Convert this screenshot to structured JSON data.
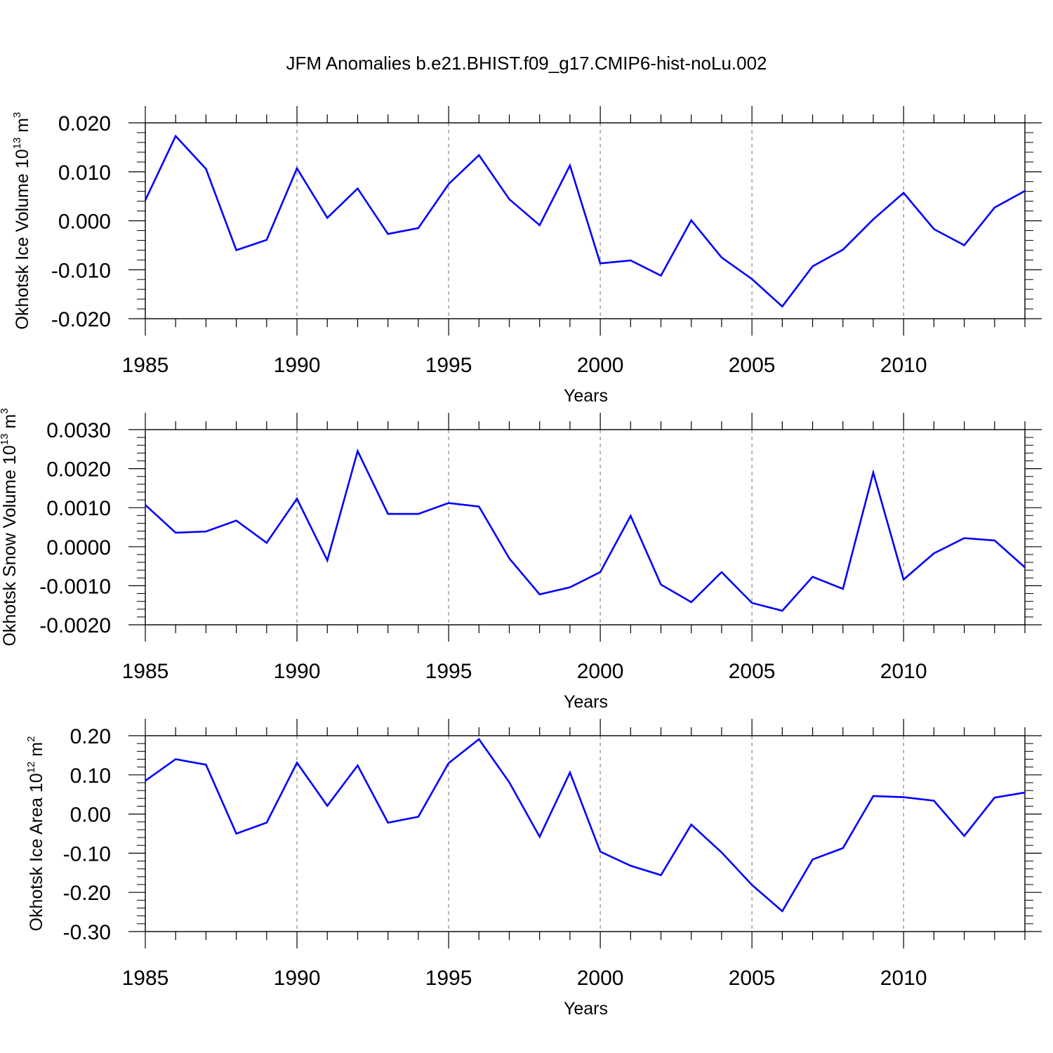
{
  "figure": {
    "title": "JFM Anomalies b.e21.BHIST.f09_g17.CMIP6-hist-noLu.002",
    "line_color": "#0000ff",
    "grid_color": "#888888"
  },
  "chart_data": [
    {
      "type": "line",
      "xlabel": "Years",
      "ylabel": {
        "text": "Okhotsk Ice Volume 10",
        "sup1": "13",
        "mid": " m",
        "sup2": "3"
      },
      "xlim": [
        1985,
        2014
      ],
      "ylim": [
        -0.02,
        0.02
      ],
      "xticks": [
        1985,
        1990,
        1995,
        2000,
        2005,
        2010
      ],
      "xtick_labels": [
        "1985",
        "1990",
        "1995",
        "2000",
        "2005",
        "2010"
      ],
      "yticks": [
        0.02,
        0.01,
        0.0,
        -0.01,
        -0.02
      ],
      "ytick_labels": [
        "0.020",
        "0.010",
        "0.000",
        "-0.010",
        "-0.020"
      ],
      "yminor_step": 0.002,
      "grid": "vertical dashed at major x ticks",
      "x": [
        1985,
        1986,
        1987,
        1988,
        1989,
        1990,
        1991,
        1992,
        1993,
        1994,
        1995,
        1996,
        1997,
        1998,
        1999,
        2000,
        2001,
        2002,
        2003,
        2004,
        2005,
        2006,
        2007,
        2008,
        2009,
        2010,
        2011,
        2012,
        2013,
        2014
      ],
      "series": [
        {
          "values": [
            0.0042,
            0.0173,
            0.0106,
            -0.006,
            -0.0039,
            0.0107,
            0.0006,
            0.0066,
            -0.0027,
            -0.0015,
            0.0075,
            0.0134,
            0.0044,
            -0.0009,
            0.0113,
            -0.0087,
            -0.0081,
            -0.0112,
            0.0001,
            -0.0075,
            -0.0119,
            -0.0175,
            -0.0093,
            -0.0059,
            0.0003,
            0.0057,
            -0.0017,
            -0.005,
            0.0027,
            0.0061
          ]
        }
      ]
    },
    {
      "type": "line",
      "xlabel": "Years",
      "ylabel": {
        "text": "Okhotsk Snow Volume 10",
        "sup1": "13",
        "mid": " m",
        "sup2": "3"
      },
      "xlim": [
        1985,
        2014
      ],
      "ylim": [
        -0.002,
        0.003
      ],
      "xticks": [
        1985,
        1990,
        1995,
        2000,
        2005,
        2010
      ],
      "xtick_labels": [
        "1985",
        "1990",
        "1995",
        "2000",
        "2005",
        "2010"
      ],
      "yticks": [
        0.003,
        0.002,
        0.001,
        0.0,
        -0.001,
        -0.002
      ],
      "ytick_labels": [
        "0.0030",
        "0.0020",
        "0.0010",
        "0.0000",
        "-0.0010",
        "-0.0020"
      ],
      "yminor_step": 0.0002,
      "grid": "vertical dashed at major x ticks",
      "x": [
        1985,
        1986,
        1987,
        1988,
        1989,
        1990,
        1991,
        1992,
        1993,
        1994,
        1995,
        1996,
        1997,
        1998,
        1999,
        2000,
        2001,
        2002,
        2003,
        2004,
        2005,
        2006,
        2007,
        2008,
        2009,
        2010,
        2011,
        2012,
        2013,
        2014
      ],
      "series": [
        {
          "values": [
            0.00107,
            0.00036,
            0.00039,
            0.00067,
            0.0001,
            0.00123,
            -0.00035,
            0.00245,
            0.00084,
            0.00084,
            0.00112,
            0.00103,
            -0.0003,
            -0.00122,
            -0.00104,
            -0.00065,
            0.00079,
            -0.00097,
            -0.00142,
            -0.00065,
            -0.00144,
            -0.00164,
            -0.00077,
            -0.00108,
            0.0019,
            -0.00084,
            -0.00017,
            0.00022,
            0.00016,
            -0.00053
          ]
        }
      ]
    },
    {
      "type": "line",
      "xlabel": "Years",
      "ylabel": {
        "text": "Okhotsk Ice Area 10",
        "sup1": "12",
        "mid": " m",
        "sup2": "2"
      },
      "xlim": [
        1985,
        2014
      ],
      "ylim": [
        -0.3,
        0.2
      ],
      "xticks": [
        1985,
        1990,
        1995,
        2000,
        2005,
        2010
      ],
      "xtick_labels": [
        "1985",
        "1990",
        "1995",
        "2000",
        "2005",
        "2010"
      ],
      "yticks": [
        0.2,
        0.1,
        0.0,
        -0.1,
        -0.2,
        -0.3
      ],
      "ytick_labels": [
        "0.20",
        "0.10",
        "0.00",
        "-0.10",
        "-0.20",
        "-0.30"
      ],
      "yminor_step": 0.02,
      "grid": "vertical dashed at major x ticks",
      "x": [
        1985,
        1986,
        1987,
        1988,
        1989,
        1990,
        1991,
        1992,
        1993,
        1994,
        1995,
        1996,
        1997,
        1998,
        1999,
        2000,
        2001,
        2002,
        2003,
        2004,
        2005,
        2006,
        2007,
        2008,
        2009,
        2010,
        2011,
        2012,
        2013,
        2014
      ],
      "series": [
        {
          "values": [
            0.085,
            0.14,
            0.126,
            -0.05,
            -0.022,
            0.131,
            0.021,
            0.124,
            -0.022,
            -0.007,
            0.13,
            0.191,
            0.081,
            -0.058,
            0.106,
            -0.096,
            -0.132,
            -0.156,
            -0.027,
            -0.098,
            -0.181,
            -0.248,
            -0.116,
            -0.087,
            0.046,
            0.043,
            0.034,
            -0.056,
            0.042,
            0.055
          ]
        }
      ]
    }
  ]
}
